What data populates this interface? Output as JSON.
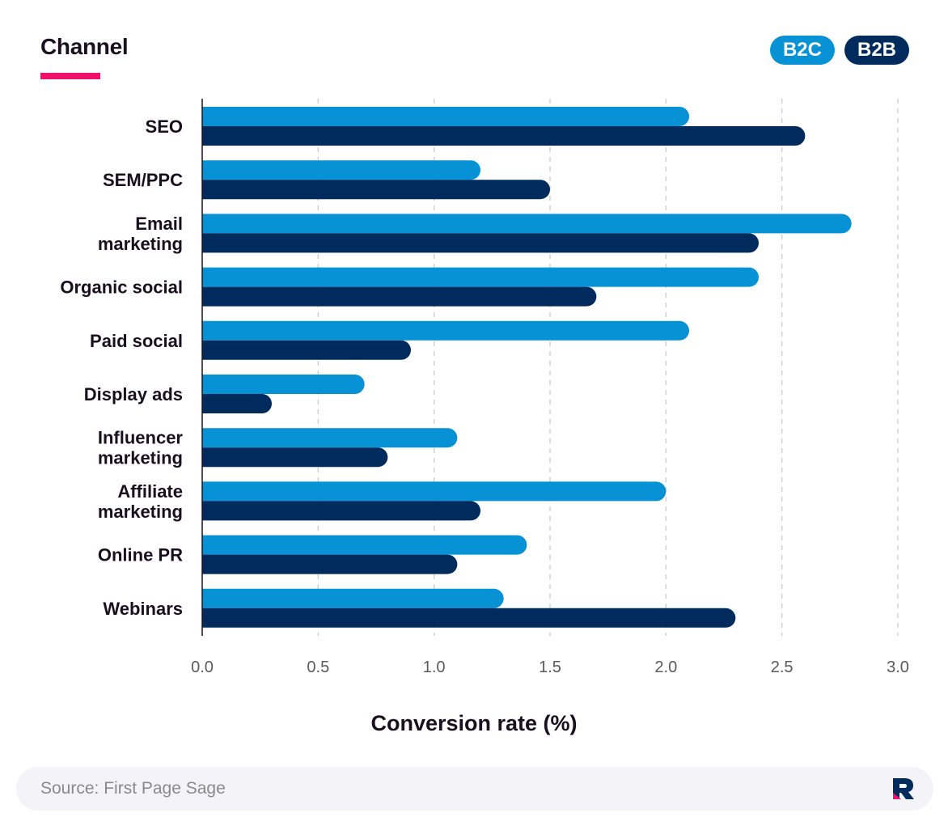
{
  "header": {
    "title": "Channel"
  },
  "legend": [
    {
      "label": "B2C",
      "color": "#0892d6"
    },
    {
      "label": "B2B",
      "color": "#002b5c"
    }
  ],
  "chart_data": {
    "type": "bar",
    "orientation": "horizontal",
    "categories": [
      "SEO",
      "SEM/PPC",
      "Email marketing",
      "Organic social",
      "Paid social",
      "Display ads",
      "Influencer marketing",
      "Affiliate marketing",
      "Online PR",
      "Webinars"
    ],
    "category_lines": [
      [
        "SEO"
      ],
      [
        "SEM/PPC"
      ],
      [
        "Email",
        "marketing"
      ],
      [
        "Organic social"
      ],
      [
        "Paid social"
      ],
      [
        "Display ads"
      ],
      [
        "Influencer",
        "marketing"
      ],
      [
        "Affiliate",
        "marketing"
      ],
      [
        "Online PR"
      ],
      [
        "Webinars"
      ]
    ],
    "series": [
      {
        "name": "B2C",
        "color": "#0892d6",
        "values": [
          2.1,
          1.2,
          2.8,
          2.4,
          2.1,
          0.7,
          1.1,
          2.0,
          1.4,
          1.3
        ]
      },
      {
        "name": "B2B",
        "color": "#002b5c",
        "values": [
          2.6,
          1.5,
          2.4,
          1.7,
          0.9,
          0.3,
          0.8,
          1.2,
          1.1,
          2.3
        ]
      }
    ],
    "xlabel": "Conversion rate (%)",
    "xlim": [
      0,
      3.0
    ],
    "xticks": [
      "0.0",
      "0.5",
      "1.0",
      "1.5",
      "2.0",
      "2.5",
      "3.0"
    ],
    "grid": "vertical dashed",
    "legend_position": "top-right"
  },
  "footer": {
    "source": "Source: First Page Sage"
  }
}
